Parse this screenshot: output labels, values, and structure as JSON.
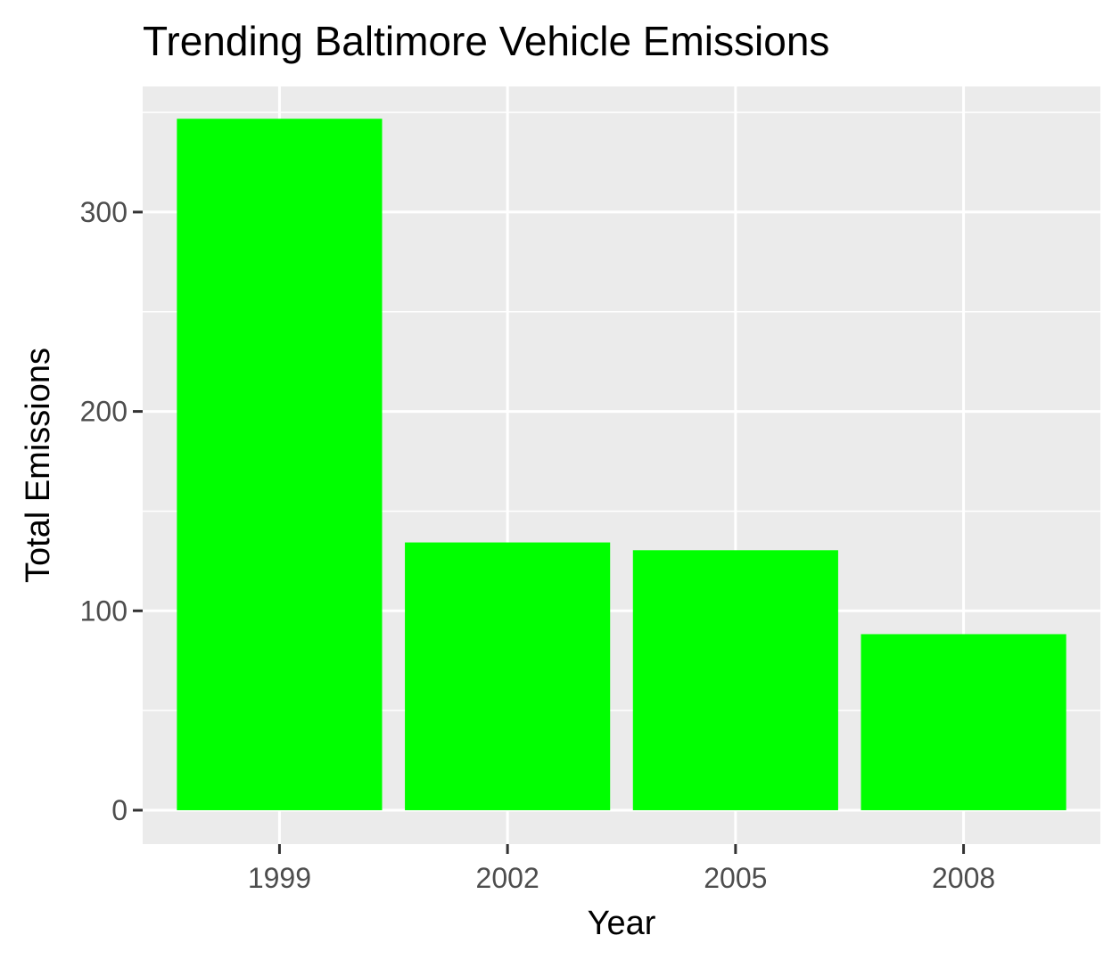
{
  "chart_data": {
    "type": "bar",
    "title": "Trending Baltimore Vehicle Emissions",
    "xlabel": "Year",
    "ylabel": "Total Emissions",
    "categories": [
      "1999",
      "2002",
      "2005",
      "2008"
    ],
    "values": [
      346.8,
      134.3,
      130.4,
      88.3
    ],
    "ylim": [
      -17,
      363
    ],
    "yticks": [
      0,
      100,
      200,
      300
    ],
    "grid": true,
    "legend": "none",
    "colors": {
      "bar": "#00ff00",
      "panel": "#ebebeb",
      "grid": "#ffffff",
      "tick": "#333333",
      "tick_label": "#4d4d4d"
    }
  }
}
